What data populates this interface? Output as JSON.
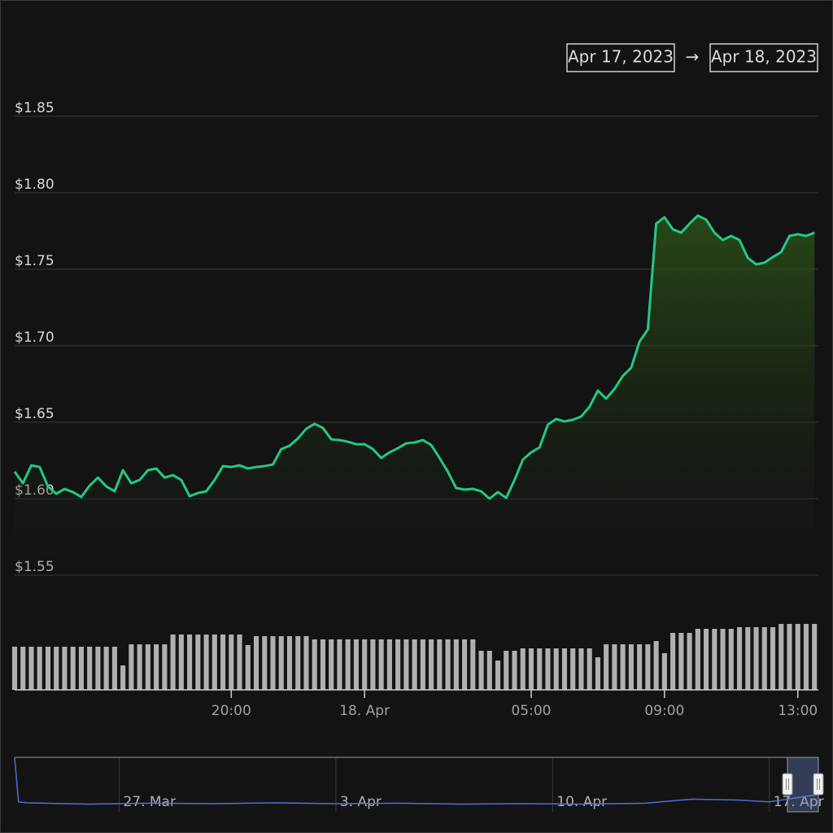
{
  "range_selector": {
    "from": "Apr 17, 2023",
    "separator": "→",
    "to": "Apr 18, 2023"
  },
  "chart_data": [
    {
      "type": "area",
      "x": [
        "2023-04-17T13:30",
        "2023-04-17T13:45",
        "2023-04-17T14:00",
        "2023-04-17T14:15",
        "2023-04-17T14:30",
        "2023-04-17T14:45",
        "2023-04-17T15:00",
        "2023-04-17T15:15",
        "2023-04-17T15:30",
        "2023-04-17T15:45",
        "2023-04-17T16:00",
        "2023-04-17T16:15",
        "2023-04-17T16:30",
        "2023-04-17T16:45",
        "2023-04-17T17:00",
        "2023-04-17T17:15",
        "2023-04-17T17:30",
        "2023-04-17T17:45",
        "2023-04-17T18:00",
        "2023-04-17T18:15",
        "2023-04-17T18:30",
        "2023-04-17T18:45",
        "2023-04-17T19:00",
        "2023-04-17T19:15",
        "2023-04-17T19:30",
        "2023-04-17T19:45",
        "2023-04-17T20:00",
        "2023-04-17T20:15",
        "2023-04-17T20:30",
        "2023-04-17T20:45",
        "2023-04-17T21:00",
        "2023-04-17T21:15",
        "2023-04-17T21:30",
        "2023-04-17T21:45",
        "2023-04-17T22:00",
        "2023-04-17T22:15",
        "2023-04-17T22:30",
        "2023-04-17T22:45",
        "2023-04-17T23:00",
        "2023-04-17T23:15",
        "2023-04-17T23:30",
        "2023-04-17T23:45",
        "2023-04-18T00:00",
        "2023-04-18T00:15",
        "2023-04-18T00:30",
        "2023-04-18T00:45",
        "2023-04-18T01:00",
        "2023-04-18T01:15",
        "2023-04-18T01:30",
        "2023-04-18T01:45",
        "2023-04-18T02:00",
        "2023-04-18T02:15",
        "2023-04-18T02:30",
        "2023-04-18T02:45",
        "2023-04-18T03:00",
        "2023-04-18T03:15",
        "2023-04-18T03:30",
        "2023-04-18T03:45",
        "2023-04-18T04:00",
        "2023-04-18T04:15",
        "2023-04-18T04:30",
        "2023-04-18T04:45",
        "2023-04-18T05:00",
        "2023-04-18T05:15",
        "2023-04-18T05:30",
        "2023-04-18T05:45",
        "2023-04-18T06:00",
        "2023-04-18T06:15",
        "2023-04-18T06:30",
        "2023-04-18T06:45",
        "2023-04-18T07:00",
        "2023-04-18T07:15",
        "2023-04-18T07:30",
        "2023-04-18T07:45",
        "2023-04-18T08:00",
        "2023-04-18T08:15",
        "2023-04-18T08:30",
        "2023-04-18T08:45",
        "2023-04-18T09:00",
        "2023-04-18T09:15",
        "2023-04-18T09:30",
        "2023-04-18T09:45",
        "2023-04-18T10:00",
        "2023-04-18T10:15",
        "2023-04-18T10:30",
        "2023-04-18T10:45",
        "2023-04-18T11:00",
        "2023-04-18T11:15",
        "2023-04-18T11:30",
        "2023-04-18T11:45",
        "2023-04-18T12:00",
        "2023-04-18T12:15",
        "2023-04-18T12:30",
        "2023-04-18T12:45",
        "2023-04-18T13:00",
        "2023-04-18T13:15",
        "2023-04-18T13:30"
      ],
      "series": [
        {
          "type": "area",
          "color": "#22c985",
          "values": [
            1.6176,
            1.6101,
            1.6218,
            1.6207,
            1.608,
            1.6032,
            1.6064,
            1.6043,
            1.6011,
            1.6085,
            1.6138,
            1.608,
            1.6048,
            1.6186,
            1.6101,
            1.6122,
            1.6186,
            1.6197,
            1.6138,
            1.6154,
            1.6122,
            1.6016,
            1.6037,
            1.6048,
            1.6122,
            1.6213,
            1.6207,
            1.6218,
            1.6197,
            1.6207,
            1.6213,
            1.6223,
            1.6324,
            1.6346,
            1.6394,
            1.6457,
            1.6489,
            1.6463,
            1.6388,
            1.6383,
            1.6372,
            1.6356,
            1.6356,
            1.6324,
            1.6266,
            1.6303,
            1.633,
            1.6362,
            1.6367,
            1.6383,
            1.6351,
            1.6266,
            1.6176,
            1.6069,
            1.6059,
            1.6064,
            1.6048,
            1.6,
            1.6043,
            1.6005,
            1.6122,
            1.6255,
            1.6303,
            1.6335,
            1.6484,
            1.6521,
            1.6505,
            1.6516,
            1.6537,
            1.6601,
            1.6707,
            1.6654,
            1.6718,
            1.6803,
            1.6856,
            1.7027,
            1.7106,
            1.7798,
            1.784,
            1.7761,
            1.7739,
            1.7798,
            1.7851,
            1.7824,
            1.7739,
            1.7691,
            1.7718,
            1.7691,
            1.7574,
            1.7532,
            1.7543,
            1.758,
            1.7612,
            1.7718,
            1.7729,
            1.7718,
            1.7739
          ]
        },
        {
          "type": "column",
          "axis": "y2",
          "color": "#b0b0b0",
          "values": [
            53,
            53,
            53,
            53,
            53,
            53,
            53,
            53,
            53,
            53,
            53,
            53,
            53,
            30,
            56,
            56,
            56,
            56,
            56,
            68,
            68,
            68,
            68,
            68,
            68,
            68,
            68,
            68,
            55,
            66,
            66,
            66,
            66,
            66,
            66,
            66,
            62,
            62,
            62,
            62,
            62,
            62,
            62,
            62,
            62,
            62,
            62,
            62,
            62,
            62,
            62,
            62,
            62,
            62,
            62,
            62,
            48,
            48,
            36,
            48,
            48,
            51,
            51,
            51,
            51,
            51,
            51,
            51,
            51,
            51,
            40,
            56,
            56,
            56,
            56,
            56,
            56,
            60,
            45,
            70,
            70,
            70,
            75,
            75,
            75,
            75,
            75,
            77,
            77,
            77,
            77,
            77,
            81,
            81,
            81,
            81,
            81
          ]
        }
      ],
      "xlim": [
        "2023-04-17T13:30",
        "2023-04-18T13:37"
      ],
      "xticks": [
        {
          "value": "2023-04-17T20:00",
          "label": "20:00"
        },
        {
          "value": "2023-04-18T00:00",
          "label": "18. Apr"
        },
        {
          "value": "2023-04-18T05:00",
          "label": "05:00"
        },
        {
          "value": "2023-04-18T09:00",
          "label": "09:00"
        },
        {
          "value": "2023-04-18T13:00",
          "label": "13:00"
        }
      ],
      "ylim": [
        1.55,
        1.85
      ],
      "yticks": [
        {
          "value": 1.55,
          "label": "$1.55"
        },
        {
          "value": 1.6,
          "label": "$1.60"
        },
        {
          "value": 1.65,
          "label": "$1.65"
        },
        {
          "value": 1.7,
          "label": "$1.70"
        },
        {
          "value": 1.75,
          "label": "$1.75"
        },
        {
          "value": 1.8,
          "label": "$1.80"
        },
        {
          "value": 1.85,
          "label": "$1.85"
        }
      ],
      "y2lim": [
        0,
        90
      ],
      "grid": true
    },
    {
      "type": "navigator",
      "x": [
        "2023-03-23T15:00",
        "2023-03-23T18:00",
        "2023-03-24T00:00",
        "2023-03-26T00:00",
        "2023-03-28T00:00",
        "2023-03-30T00:00",
        "2023-04-01T00:00",
        "2023-04-03T00:00",
        "2023-04-05T00:00",
        "2023-04-07T00:00",
        "2023-04-09T00:00",
        "2023-04-11T00:00",
        "2023-04-13T00:00",
        "2023-04-14T12:00",
        "2023-04-16T00:00",
        "2023-04-17T00:00",
        "2023-04-18T13:30"
      ],
      "series": [
        {
          "type": "line",
          "color": "#4a6fd8",
          "values": [
            2.6,
            1.62,
            1.6,
            1.57,
            1.59,
            1.58,
            1.6,
            1.58,
            1.59,
            1.57,
            1.58,
            1.57,
            1.59,
            1.68,
            1.66,
            1.62,
            1.78
          ]
        }
      ],
      "xlim": [
        "2023-03-23T15:00",
        "2023-04-18T14:00"
      ],
      "xticks": [
        {
          "value": "2023-03-27T00:00",
          "label": "27. Mar"
        },
        {
          "value": "2023-04-03T00:00",
          "label": "3. Apr"
        },
        {
          "value": "2023-04-10T00:00",
          "label": "10. Apr"
        },
        {
          "value": "2023-04-17T00:00",
          "label": "17. Apr"
        }
      ],
      "ylim": [
        1.4,
        2.6
      ],
      "grid": true
    }
  ]
}
